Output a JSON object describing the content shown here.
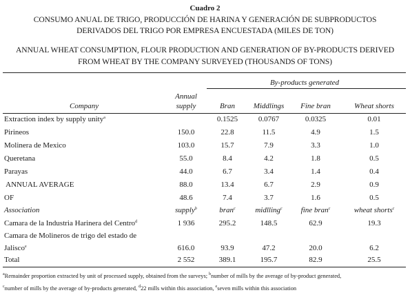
{
  "table_label": "Cuadro 2",
  "title_es": [
    "CONSUMO ANUAL DE TRIGO, PRODUCCIÓN DE HARINA Y GENERACIÓN DE SUBPRODUCTOS",
    "DERIVADOS DEL TRIGO POR EMPRESA ENCUESTADA (MILES DE TON)"
  ],
  "title_en": [
    "ANNUAL WHEAT CONSUMPTION, FLOUR PRODUCTION AND GENERATION OF BY-PRODUCTS DERIVED",
    "FROM WHEAT BY THE COMPANY SURVEYED (THOUSANDS OF TONS)"
  ],
  "group_header": "By-products generated",
  "headers": {
    "company": "Company",
    "supply": [
      "Annual",
      "supply"
    ],
    "bran": "Bran",
    "middlings": "Middlings",
    "fine_bran": "Fine bran",
    "shorts": "Wheat shorts"
  },
  "rows": [
    {
      "label": "Extraction index by supply unity",
      "label_sup": "a",
      "supply": "",
      "bran": "0.1525",
      "middlings": "0.0767",
      "fine_bran": "0.0325",
      "shorts": "0.01"
    },
    {
      "label": "Pirineos",
      "supply": "150.0",
      "bran": "22.8",
      "middlings": "11.5",
      "fine_bran": "4.9",
      "shorts": "1.5"
    },
    {
      "label": "Molinera de Mexico",
      "supply": "103.0",
      "bran": "15.7",
      "middlings": "7.9",
      "fine_bran": "3.3",
      "shorts": "1.0"
    },
    {
      "label": "Queretana",
      "supply": "55.0",
      "bran": "8.4",
      "middlings": "4.2",
      "fine_bran": "1.8",
      "shorts": "0.5"
    },
    {
      "label": "Parayas",
      "supply": "44.0",
      "bran": "6.7",
      "middlings": "3.4",
      "fine_bran": "1.4",
      "shorts": "0.4"
    },
    {
      "label": " ANNUAL AVERAGE",
      "supply": "88.0",
      "bran": "13.4",
      "middlings": "6.7",
      "fine_bran": "2.9",
      "shorts": "0.9"
    },
    {
      "label": "OF",
      "supply": "48.6",
      "bran": "7.4",
      "middlings": "3.7",
      "fine_bran": "1.6",
      "shorts": "0.5"
    }
  ],
  "assoc_header": {
    "label": "Association",
    "supply": "supply",
    "supply_sup": "b",
    "bran": "bran",
    "bran_sup": "c",
    "middlings": "midlling",
    "middlings_sup": "c",
    "fine_bran": "fine bran",
    "fine_bran_sup": "c",
    "shorts": "wheat shorts",
    "shorts_sup": "c"
  },
  "assoc_rows": [
    {
      "label": "Camara de la Industria Harinera del Centro",
      "label_sup": "d",
      "supply": "1 936",
      "bran": "295.2",
      "middlings": "148.5",
      "fine_bran": "62.9",
      "shorts": "19.3"
    },
    {
      "label": "Camara de Molineros de trigo del estado de",
      "label2": "Jalisco",
      "label_sup": "e",
      "supply": "616.0",
      "bran": "93.9",
      "middlings": "47.2",
      "fine_bran": "20.0",
      "shorts": "6.2"
    },
    {
      "label": "Total",
      "supply": "2 552",
      "bran": "389.1",
      "middlings": "195.7",
      "fine_bran": "82.9",
      "shorts": "25.5"
    }
  ],
  "footnotes": {
    "a_sup": "a",
    "a": "Remainder proportion extracted by unit of processed supply, obtained from the surveys; ",
    "b_sup": "b",
    "b": "number of mills by the average of by-product generated,",
    "c_sup": "c",
    "c": "number of mills by the average of by-products generated, ",
    "d_sup": "d",
    "d": "22 mills within this association, ",
    "e_sup": "e",
    "e": "seven mills within this association"
  }
}
